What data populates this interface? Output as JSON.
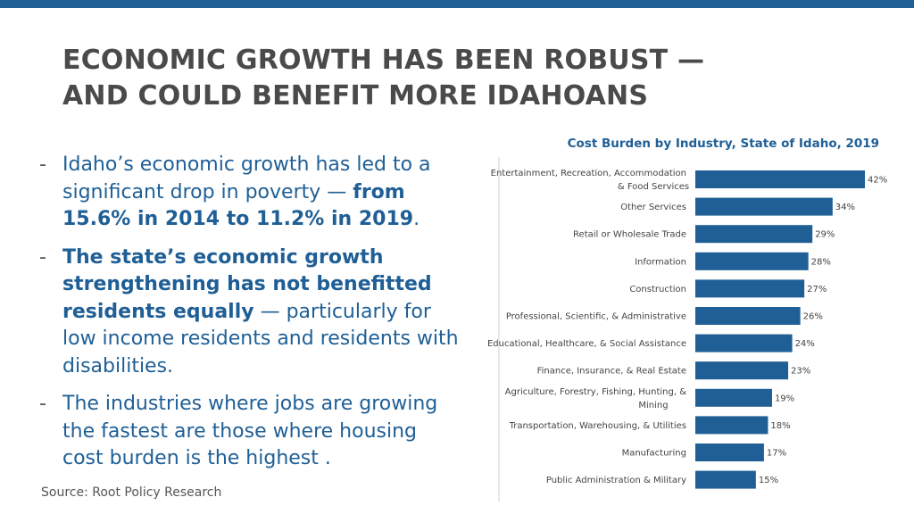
{
  "title_lines": [
    "ECONOMIC GROWTH HAS BEEN ROBUST —",
    "AND COULD BENEFIT MORE IDAHOANS"
  ],
  "bullets": [
    {
      "dash": "-",
      "text1": "Idaho’s economic growth has led to a significant drop in poverty — ",
      "bold1": "from 15.6% in 2014 to 11.2% in 2019",
      "text2": "."
    },
    {
      "dash": "-",
      "bold1": "The state’s economic growth strengthening has not benefitted residents equally",
      "text1": " — particularly for low income residents and residents with disabilities."
    },
    {
      "dash": "-",
      "text1": "The industries where jobs are growing the fastest are those where housing cost burden is the highest ."
    }
  ],
  "source": "Source: Root Policy Research",
  "colors": {
    "accent": "#1f5f96",
    "bar": "#1f5f96",
    "title_text": "#4a4a4a"
  },
  "chart_data": {
    "type": "bar",
    "orientation": "horizontal",
    "title": "Cost Burden by Industry, State of Idaho, 2019",
    "xlim": [
      0,
      42
    ],
    "grid": false,
    "categories": [
      [
        "Entertainment, Recreation, Accommodation",
        "& Food Services"
      ],
      [
        "Other Services"
      ],
      [
        "Retail or Wholesale Trade"
      ],
      [
        "Information"
      ],
      [
        "Construction"
      ],
      [
        "Professional, Scientific, & Administrative"
      ],
      [
        "Educational, Healthcare, & Social Assistance"
      ],
      [
        "Finance, Insurance, & Real Estate"
      ],
      [
        "Agriculture, Forestry, Fishing, Hunting, &",
        "Mining"
      ],
      [
        "Transportation, Warehousing, & Utilities"
      ],
      [
        "Manufacturing"
      ],
      [
        "Public Administration & Military"
      ]
    ],
    "values": [
      42,
      34,
      29,
      28,
      27,
      26,
      24,
      23,
      19,
      18,
      17,
      15
    ],
    "data_labels": [
      "42%",
      "34%",
      "29%",
      "28%",
      "27%",
      "26%",
      "24%",
      "23%",
      "19%",
      "18%",
      "17%",
      "15%"
    ]
  }
}
